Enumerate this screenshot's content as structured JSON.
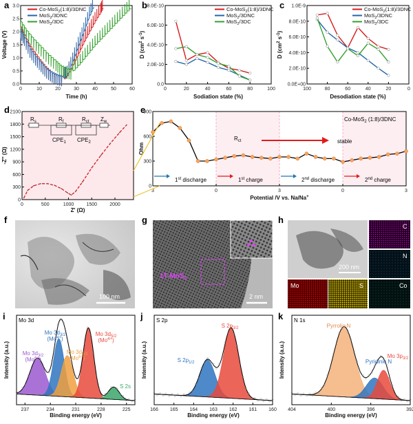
{
  "panels": {
    "a": {
      "label": "a"
    },
    "b": {
      "label": "b"
    },
    "c": {
      "label": "c"
    },
    "d": {
      "label": "d"
    },
    "e": {
      "label": "e"
    },
    "f": {
      "label": "f",
      "scale": "100 nm"
    },
    "g": {
      "label": "g",
      "scale": "2 nm",
      "phase": "1T-MoS",
      "phase_sub": "2"
    },
    "h": {
      "label": "h",
      "scale": "200 nm",
      "maps": [
        "C",
        "N",
        "Mo",
        "S",
        "Co"
      ]
    },
    "i": {
      "label": "i"
    },
    "j": {
      "label": "j"
    },
    "k": {
      "label": "k"
    }
  },
  "legend_names": {
    "co": "Co-MoS2(1:8)/3DNC",
    "mos3dnc": "MoS2/3DNC",
    "mos3dc": "MoS2/3DC"
  },
  "chart_data": [
    {
      "id": "a",
      "type": "line",
      "xlabel": "Time (h)",
      "ylabel": "Voltage (V)",
      "xlim": [
        0,
        60
      ],
      "ylim": [
        0,
        3.0
      ],
      "xticks": [
        0,
        10,
        20,
        30,
        40,
        50,
        60
      ],
      "yticks": [
        "0.0",
        "0.5",
        "1.0",
        "1.5",
        "2.0",
        "2.5",
        "3.0"
      ],
      "legend_position": "top-left",
      "series": [
        {
          "name": "Co-MoS2(1:8)/3DNC",
          "color": "#d7191c",
          "x": [
            0,
            2,
            5,
            8,
            11,
            14,
            17,
            20,
            23,
            25,
            28,
            31,
            34,
            37,
            40,
            43,
            44.5
          ],
          "y": [
            2.2,
            1.9,
            1.45,
            1.15,
            0.85,
            0.6,
            0.4,
            0.3,
            0.25,
            0.3,
            0.7,
            1.15,
            1.6,
            2.0,
            2.4,
            2.75,
            2.95
          ]
        },
        {
          "name": "MoS2/3DNC",
          "color": "#2166ac",
          "x": [
            0,
            2,
            5,
            8,
            11,
            14,
            17,
            20,
            23,
            25,
            28,
            31,
            34,
            37,
            39.5
          ],
          "y": [
            2.1,
            1.8,
            1.35,
            1.05,
            0.8,
            0.55,
            0.4,
            0.3,
            0.25,
            0.35,
            0.85,
            1.45,
            2.0,
            2.6,
            3.0
          ]
        },
        {
          "name": "MoS2/3DC",
          "color": "#33a02c",
          "x": [
            0,
            3,
            7,
            11,
            15,
            19,
            22,
            25,
            28,
            32,
            36,
            40,
            44,
            48,
            52,
            56,
            59.5
          ],
          "y": [
            2.4,
            2.05,
            1.7,
            1.4,
            1.1,
            0.85,
            0.65,
            0.55,
            0.5,
            0.8,
            1.15,
            1.5,
            1.8,
            2.1,
            2.4,
            2.7,
            2.95
          ]
        }
      ]
    },
    {
      "id": "b",
      "type": "line",
      "xlabel": "Sodiation state (%)",
      "ylabel": "D (cm2 s-1)",
      "xlim": [
        0,
        100
      ],
      "ylim": [
        0,
        8e-10
      ],
      "xticks": [
        0,
        20,
        40,
        60,
        80,
        100
      ],
      "yticks": [
        "0.0",
        "2.0E-10",
        "4.0E-10",
        "6.0E-10",
        "8.0E-10"
      ],
      "legend_position": "top-right",
      "series": [
        {
          "name": "Co-MoS2(1:8)/3DNC",
          "color": "#d7191c",
          "x": [
            10,
            20,
            30,
            40,
            50,
            60,
            70,
            80
          ],
          "y": [
            6.4e-10,
            2.4e-10,
            3e-10,
            3.2e-10,
            2.2e-10,
            1.6e-10,
            1.4e-10,
            1.1e-10
          ]
        },
        {
          "name": "MoS2/3DNC",
          "color": "#2166ac",
          "x": [
            10,
            20,
            30,
            40,
            50,
            60,
            70,
            80
          ],
          "y": [
            2.3e-10,
            2e-10,
            2.6e-10,
            2.2e-10,
            1.7e-10,
            1.4e-10,
            9e-11,
            4e-11
          ]
        },
        {
          "name": "MoS2/3DC",
          "color": "#33a02c",
          "x": [
            10,
            20,
            30,
            40,
            50,
            60,
            70,
            80
          ],
          "y": [
            3.6e-10,
            3.8e-10,
            3e-10,
            2.7e-10,
            2.1e-10,
            1.8e-10,
            8e-11,
            4e-11
          ]
        }
      ]
    },
    {
      "id": "c",
      "type": "line",
      "xlabel": "Desodiation state (%)",
      "ylabel": "D (cm2 s-1)",
      "xlim": [
        100,
        0
      ],
      "ylim": [
        0,
        1e-09
      ],
      "xticks": [
        100,
        80,
        60,
        40,
        20,
        0
      ],
      "yticks": [
        "0.0E+00",
        "2.0E-10",
        "4.0E-10",
        "6.0E-10",
        "8.0E-10",
        "1.0E-9"
      ],
      "legend_position": "top-right",
      "series": [
        {
          "name": "Co-MoS2(1:8)/3DNC",
          "color": "#d7191c",
          "x": [
            90,
            80,
            70,
            60,
            50,
            40,
            30,
            20
          ],
          "y": [
            8.8e-10,
            9e-10,
            6.2e-10,
            4.6e-10,
            7.2e-10,
            5.8e-10,
            4.8e-10,
            4.4e-10
          ]
        },
        {
          "name": "MoS2/3DNC",
          "color": "#2166ac",
          "x": [
            90,
            80,
            70,
            60,
            50,
            40,
            30,
            20
          ],
          "y": [
            8.2e-10,
            6.6e-10,
            5.6e-10,
            4.6e-10,
            4e-10,
            3e-10,
            2e-10,
            1.1e-10
          ]
        },
        {
          "name": "MoS2/3DC",
          "color": "#33a02c",
          "x": [
            90,
            80,
            70,
            60,
            50,
            40,
            30,
            20
          ],
          "y": [
            8.4e-10,
            4.8e-10,
            2.8e-10,
            4.5e-10,
            3.6e-10,
            5.2e-10,
            4.4e-10,
            2.8e-10
          ]
        }
      ]
    },
    {
      "id": "d",
      "type": "line",
      "xlabel": "Z' (Ω)",
      "ylabel": "-Z'' (Ω)",
      "xlim": [
        0,
        2400
      ],
      "ylim": [
        0,
        2100
      ],
      "xticks": [
        0,
        500,
        1000,
        1500,
        2000
      ],
      "yticks": [
        0,
        300,
        600,
        900,
        1200,
        1500,
        1800,
        2100
      ],
      "circuit_labels": [
        "Rs",
        "Rf",
        "Rct",
        "Zw",
        "CPE1",
        "CPE2"
      ],
      "series": [
        {
          "name": "fit",
          "color": "#d7191c",
          "x": [
            40,
            120,
            250,
            400,
            550,
            700,
            850,
            980,
            1060,
            1150,
            1300,
            1500,
            1700,
            1900,
            2100,
            2250
          ],
          "y": [
            40,
            220,
            330,
            380,
            380,
            340,
            260,
            160,
            110,
            190,
            420,
            760,
            1060,
            1340,
            1600,
            1780
          ]
        }
      ]
    },
    {
      "id": "e",
      "type": "line",
      "xlabel": "Potential /V vs. Na/Na+",
      "ylabel": "Ohm",
      "ylim": [
        0,
        900
      ],
      "yticks": [
        0,
        300,
        600,
        900
      ],
      "xticklabels": [
        "3",
        "0",
        "3",
        "0",
        "3"
      ],
      "sample": "Co-MoS2 (1:8)/3DNC",
      "annotation_rct": "Rct",
      "annotation_stable": "stable",
      "stage_labels": [
        "1st discharge",
        "1st charge",
        "2nd discharge",
        "2nd charge"
      ],
      "series": [
        {
          "name": "Rct",
          "color": "#000000",
          "values": [
            650,
            760,
            780,
            700,
            550,
            300,
            300,
            320,
            340,
            360,
            370,
            350,
            340,
            330,
            350,
            350,
            330,
            390,
            350,
            330,
            330,
            290,
            310,
            330,
            340,
            350,
            380,
            390,
            420
          ]
        }
      ]
    },
    {
      "id": "i",
      "type": "area",
      "corner_label": "Mo 3d",
      "xlabel": "Binding energy (eV)",
      "ylabel": "Intensity (a.u.)",
      "xlim": [
        238,
        224
      ],
      "xticks": [
        237,
        234,
        231,
        228,
        225
      ],
      "peaks": [
        {
          "label": "Mo 3d3/2",
          "sublabel": "(Mo6+)",
          "center": 235.5,
          "height": 0.45,
          "width": 1.3,
          "color": "#9b59d0"
        },
        {
          "label": "Mo 3d3/2",
          "sublabel": "(Mo4+)",
          "center": 233.0,
          "height": 0.7,
          "width": 0.9,
          "color": "#2f74c0"
        },
        {
          "label": "Mo 3d5/2",
          "sublabel": "(Mo6+)",
          "center": 232.0,
          "height": 0.5,
          "width": 1.0,
          "color": "#f0a040"
        },
        {
          "label": "Mo 3d5/2",
          "sublabel": "(Mo4+)",
          "center": 229.5,
          "height": 0.85,
          "width": 0.9,
          "color": "#e84a3c"
        },
        {
          "label": "S 2s",
          "sublabel": "",
          "center": 226.5,
          "height": 0.15,
          "width": 0.9,
          "color": "#3aa66a"
        }
      ]
    },
    {
      "id": "j",
      "type": "area",
      "corner_label": "S 2p",
      "xlabel": "Binding energy (eV)",
      "ylabel": "Intensity (a.u.)",
      "xlim": [
        166,
        160
      ],
      "xticks": [
        166,
        165,
        164,
        163,
        162,
        161,
        160
      ],
      "peaks": [
        {
          "label": "S 2p1/2",
          "center": 163.3,
          "height": 0.45,
          "width": 0.55,
          "color": "#2f74c0"
        },
        {
          "label": "S 2p3/2",
          "center": 162.1,
          "height": 0.85,
          "width": 0.55,
          "color": "#e84a3c"
        }
      ]
    },
    {
      "id": "k",
      "type": "area",
      "corner_label": "N 1s",
      "xlabel": "Binding energy (eV)",
      "ylabel": "Intensity (a.u.)",
      "xlim": [
        404,
        392
      ],
      "xticks": [
        404,
        400,
        396,
        392
      ],
      "peaks": [
        {
          "label": "Pyrrolic N",
          "center": 398.7,
          "height": 0.85,
          "width": 1.5,
          "color": "#f4b27a"
        },
        {
          "label": "Pyridinic N",
          "center": 395.6,
          "height": 0.25,
          "width": 1.2,
          "color": "#2f74c0"
        },
        {
          "label": "Mo 3p3/2",
          "center": 394.7,
          "height": 0.35,
          "width": 0.9,
          "color": "#e84a3c"
        }
      ]
    }
  ]
}
